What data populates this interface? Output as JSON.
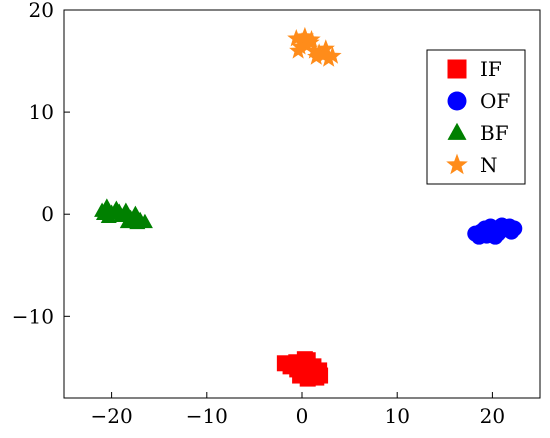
{
  "chart_data": {
    "type": "scatter",
    "title": "",
    "xlabel": "",
    "ylabel": "",
    "xlim": [
      -25,
      25
    ],
    "ylim": [
      -18,
      20
    ],
    "xticks": [
      -20,
      -10,
      0,
      10,
      20
    ],
    "yticks": [
      -10,
      0,
      10,
      20
    ],
    "xtick_labels": [
      "−20",
      "−10",
      "0",
      "10",
      "20"
    ],
    "ytick_labels": [
      "−10",
      "0",
      "10",
      "20"
    ],
    "grid": false,
    "legend_position": "top-right",
    "series": [
      {
        "name": "IF",
        "marker": "square",
        "color": "#ff0000",
        "points": [
          [
            -1.8,
            -14.6
          ],
          [
            -1.2,
            -14.9
          ],
          [
            -0.6,
            -14.5
          ],
          [
            0.0,
            -14.8
          ],
          [
            0.6,
            -14.3
          ],
          [
            1.2,
            -14.9
          ],
          [
            1.8,
            -15.3
          ],
          [
            1.0,
            -15.6
          ],
          [
            0.2,
            -15.4
          ],
          [
            -0.5,
            -15.2
          ],
          [
            1.5,
            -16.0
          ],
          [
            0.6,
            -16.1
          ],
          [
            -0.2,
            -15.8
          ],
          [
            0.3,
            -14.2
          ],
          [
            1.9,
            -15.8
          ]
        ]
      },
      {
        "name": "OF",
        "marker": "circle",
        "color": "#0000ff",
        "points": [
          [
            18.2,
            -1.9
          ],
          [
            18.8,
            -1.7
          ],
          [
            19.4,
            -2.1
          ],
          [
            20.0,
            -1.6
          ],
          [
            20.6,
            -1.9
          ],
          [
            21.2,
            -1.4
          ],
          [
            21.8,
            -1.2
          ],
          [
            22.3,
            -1.4
          ],
          [
            19.2,
            -1.4
          ],
          [
            20.3,
            -2.2
          ],
          [
            21.0,
            -1.1
          ],
          [
            22.0,
            -1.7
          ],
          [
            19.8,
            -1.2
          ],
          [
            20.9,
            -1.6
          ],
          [
            18.6,
            -2.2
          ]
        ]
      },
      {
        "name": "BF",
        "marker": "triangle",
        "color": "#008000",
        "points": [
          [
            -21.0,
            0.3
          ],
          [
            -20.5,
            0.7
          ],
          [
            -20.0,
            0.1
          ],
          [
            -19.5,
            0.5
          ],
          [
            -19.0,
            -0.2
          ],
          [
            -18.5,
            0.3
          ],
          [
            -18.0,
            -0.4
          ],
          [
            -17.5,
            0.0
          ],
          [
            -17.0,
            -0.6
          ],
          [
            -16.5,
            -0.8
          ],
          [
            -20.3,
            -0.3
          ],
          [
            -19.2,
            0.2
          ],
          [
            -18.3,
            -0.8
          ],
          [
            -17.3,
            -0.9
          ],
          [
            -20.8,
            0.0
          ]
        ]
      },
      {
        "name": "N",
        "marker": "star",
        "color": "#ff8c1a",
        "points": [
          [
            -0.6,
            17.2
          ],
          [
            0.0,
            16.9
          ],
          [
            0.5,
            16.5
          ],
          [
            -0.2,
            16.4
          ],
          [
            0.9,
            16.8
          ],
          [
            1.3,
            16.0
          ],
          [
            1.8,
            15.8
          ],
          [
            2.3,
            15.6
          ],
          [
            2.8,
            15.2
          ],
          [
            3.2,
            15.5
          ],
          [
            0.3,
            17.4
          ],
          [
            1.0,
            17.1
          ],
          [
            1.5,
            15.4
          ],
          [
            2.5,
            16.2
          ],
          [
            -0.4,
            16.0
          ]
        ]
      }
    ]
  }
}
